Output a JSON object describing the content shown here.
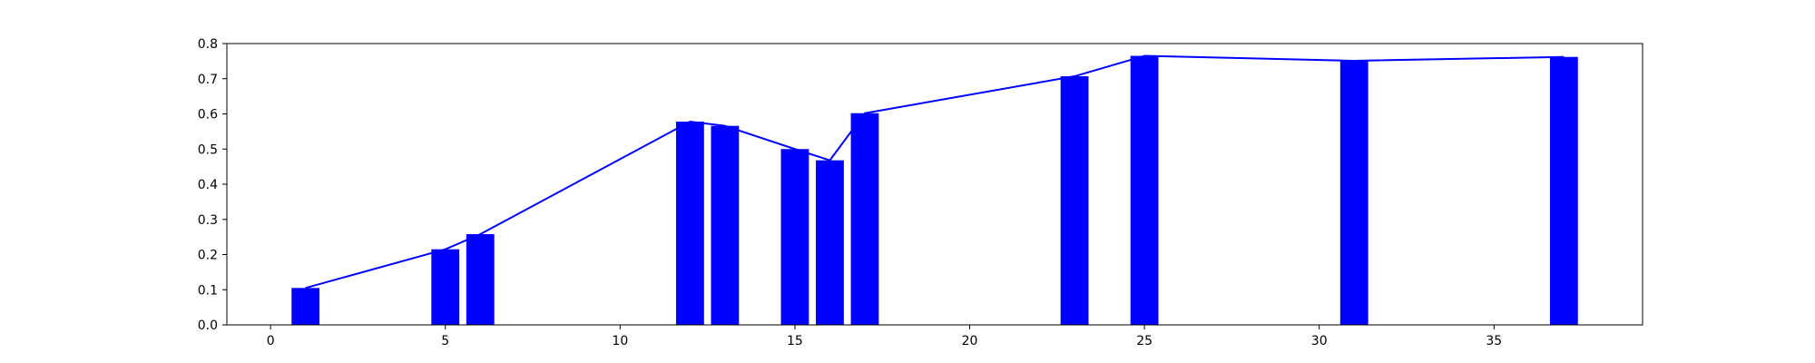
{
  "chart_data": {
    "type": "bar",
    "x": [
      1,
      5,
      6,
      12,
      13,
      15,
      16,
      17,
      23,
      25,
      31,
      37
    ],
    "values": [
      0.105,
      0.215,
      0.258,
      0.578,
      0.566,
      0.5,
      0.468,
      0.602,
      0.707,
      0.765,
      0.751,
      0.762
    ],
    "series": [
      {
        "type": "bar",
        "color": "#0000ff",
        "values": [
          0.105,
          0.215,
          0.258,
          0.578,
          0.566,
          0.5,
          0.468,
          0.602,
          0.707,
          0.765,
          0.751,
          0.762
        ]
      },
      {
        "type": "line",
        "color": "#0000ff",
        "values": [
          0.105,
          0.215,
          0.258,
          0.578,
          0.566,
          0.5,
          0.468,
          0.602,
          0.707,
          0.765,
          0.751,
          0.762
        ]
      }
    ],
    "title": "",
    "xlabel": "",
    "ylabel": "",
    "xlim": [
      -1.25,
      39.25
    ],
    "ylim": [
      0.0,
      0.8
    ],
    "xticks": [
      0,
      5,
      10,
      15,
      20,
      25,
      30,
      35
    ],
    "xtick_labels": [
      "0",
      "5",
      "10",
      "15",
      "20",
      "25",
      "30",
      "35"
    ],
    "yticks": [
      0.0,
      0.1,
      0.2,
      0.3,
      0.4,
      0.5,
      0.6,
      0.7,
      0.8
    ],
    "ytick_labels": [
      "0.0",
      "0.1",
      "0.2",
      "0.3",
      "0.4",
      "0.5",
      "0.6",
      "0.7",
      "0.8"
    ],
    "grid": false,
    "legend": "none"
  }
}
